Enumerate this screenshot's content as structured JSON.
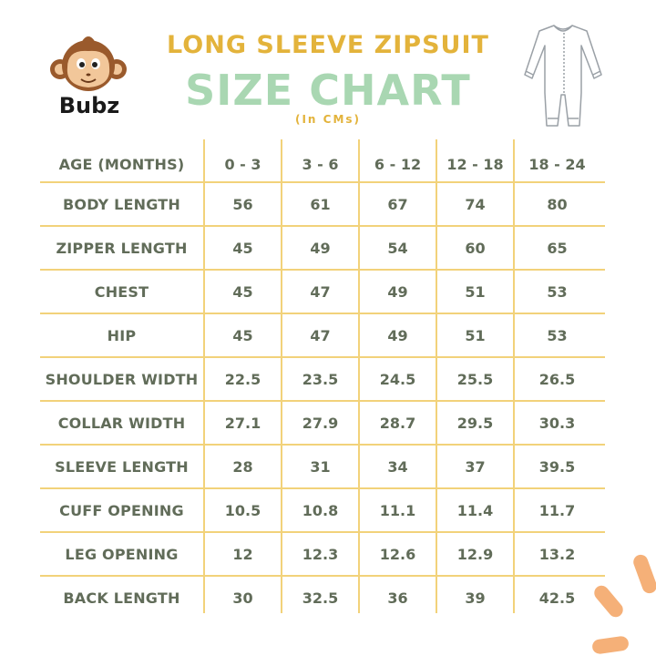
{
  "brand": {
    "name": "Bubz",
    "logo_icon": "monkey-face-icon"
  },
  "header": {
    "headline": "LONG SLEEVE ZIPSUIT",
    "title": "SIZE CHART",
    "units": "(In CMs)",
    "garment_icon": "zipsuit-outline-icon"
  },
  "colors": {
    "headline": "#e3b33b",
    "title": "#a9d7b2",
    "text": "#616c59",
    "grid": "#f2d27a",
    "accent": "#f5b078"
  },
  "table": {
    "columns": [
      "AGE (MONTHS)",
      "0 - 3",
      "3 - 6",
      "6 - 12",
      "12 - 18",
      "18 - 24"
    ],
    "rows": [
      {
        "label": "BODY LENGTH",
        "values": [
          "56",
          "61",
          "67",
          "74",
          "80"
        ]
      },
      {
        "label": "ZIPPER LENGTH",
        "values": [
          "45",
          "49",
          "54",
          "60",
          "65"
        ]
      },
      {
        "label": "CHEST",
        "values": [
          "45",
          "47",
          "49",
          "51",
          "53"
        ]
      },
      {
        "label": "HIP",
        "values": [
          "45",
          "47",
          "49",
          "51",
          "53"
        ]
      },
      {
        "label": "SHOULDER WIDTH",
        "values": [
          "22.5",
          "23.5",
          "24.5",
          "25.5",
          "26.5"
        ]
      },
      {
        "label": "COLLAR WIDTH",
        "values": [
          "27.1",
          "27.9",
          "28.7",
          "29.5",
          "30.3"
        ]
      },
      {
        "label": "SLEEVE LENGTH",
        "values": [
          "28",
          "31",
          "34",
          "37",
          "39.5"
        ]
      },
      {
        "label": "CUFF OPENING",
        "values": [
          "10.5",
          "10.8",
          "11.1",
          "11.4",
          "11.7"
        ]
      },
      {
        "label": "LEG OPENING",
        "values": [
          "12",
          "12.3",
          "12.6",
          "12.9",
          "13.2"
        ]
      },
      {
        "label": "BACK LENGTH",
        "values": [
          "30",
          "32.5",
          "36",
          "39",
          "42.5"
        ]
      }
    ]
  }
}
